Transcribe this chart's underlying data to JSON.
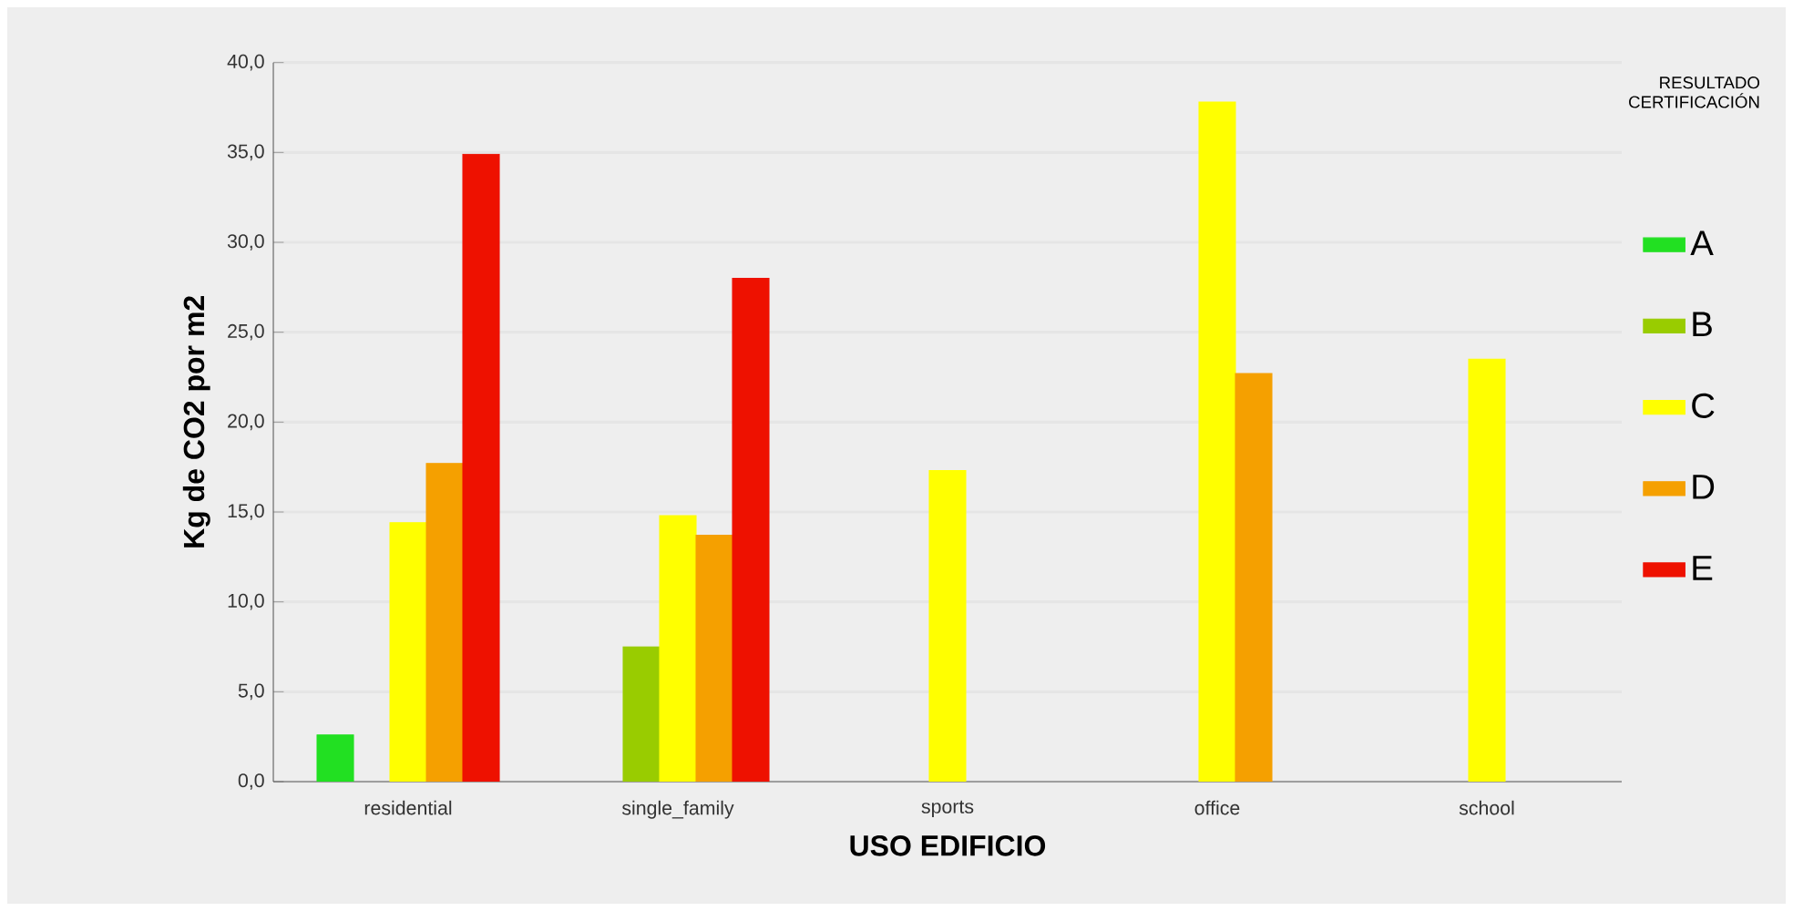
{
  "chart_data": {
    "type": "bar",
    "xlabel": "USO EDIFICIO",
    "ylabel": "Kg de CO2 por m2",
    "legend_title": "RESULTADO CERTIFICACIÓN",
    "categories": [
      "residential",
      "single_family",
      "sports",
      "office",
      "school"
    ],
    "series": [
      {
        "name": "A",
        "color": "#22e022",
        "values": [
          2.6,
          null,
          null,
          null,
          null
        ]
      },
      {
        "name": "B",
        "color": "#99cc00",
        "values": [
          null,
          7.5,
          null,
          null,
          null
        ]
      },
      {
        "name": "C",
        "color": "#ffff00",
        "values": [
          14.4,
          14.8,
          17.3,
          37.8,
          23.5
        ]
      },
      {
        "name": "D",
        "color": "#f5a000",
        "values": [
          17.7,
          13.7,
          null,
          22.7,
          null
        ]
      },
      {
        "name": "E",
        "color": "#ee1100",
        "values": [
          34.9,
          28.0,
          null,
          null,
          null
        ]
      }
    ],
    "ylim": [
      0,
      40
    ],
    "yticks": [
      {
        "value": 0,
        "label": "0,0"
      },
      {
        "value": 5,
        "label": "5,0"
      },
      {
        "value": 10,
        "label": "10,0"
      },
      {
        "value": 15,
        "label": "15,0"
      },
      {
        "value": 20,
        "label": "20,0"
      },
      {
        "value": 25,
        "label": "25,0"
      },
      {
        "value": 30,
        "label": "30,0"
      },
      {
        "value": 35,
        "label": "35,0"
      },
      {
        "value": 40,
        "label": "40,0"
      }
    ],
    "grid": "y",
    "legend": "right"
  }
}
